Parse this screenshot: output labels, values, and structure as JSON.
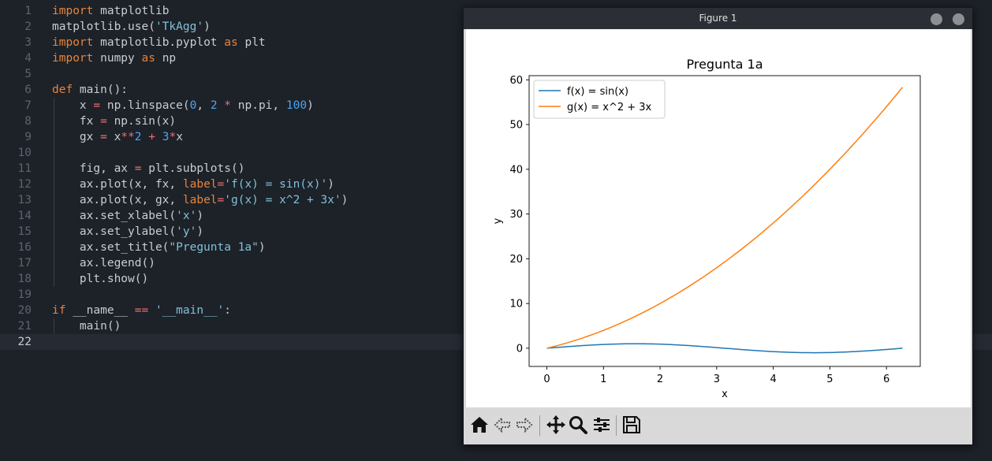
{
  "editor": {
    "lines": [
      [
        [
          "kw",
          "import"
        ],
        [
          "plain",
          " matplotlib"
        ]
      ],
      [
        [
          "plain",
          "matplotlib.use("
        ],
        [
          "str",
          "'TkAgg'"
        ],
        [
          "plain",
          ")"
        ]
      ],
      [
        [
          "kw",
          "import"
        ],
        [
          "plain",
          " matplotlib.pyplot "
        ],
        [
          "kw",
          "as"
        ],
        [
          "plain",
          " plt"
        ]
      ],
      [
        [
          "kw",
          "import"
        ],
        [
          "plain",
          " numpy "
        ],
        [
          "kw",
          "as"
        ],
        [
          "plain",
          " np"
        ]
      ],
      [],
      [
        [
          "kw",
          "def"
        ],
        [
          "plain",
          " main():"
        ]
      ],
      [
        [
          "plain",
          "    x "
        ],
        [
          "op",
          "="
        ],
        [
          "plain",
          " np.linspace("
        ],
        [
          "num",
          "0"
        ],
        [
          "plain",
          ", "
        ],
        [
          "num",
          "2"
        ],
        [
          "plain",
          " "
        ],
        [
          "op",
          "*"
        ],
        [
          "plain",
          " np.pi, "
        ],
        [
          "num",
          "100"
        ],
        [
          "plain",
          ")"
        ]
      ],
      [
        [
          "plain",
          "    fx "
        ],
        [
          "op",
          "="
        ],
        [
          "plain",
          " np.sin(x)"
        ]
      ],
      [
        [
          "plain",
          "    gx "
        ],
        [
          "op",
          "="
        ],
        [
          "plain",
          " x"
        ],
        [
          "op",
          "**"
        ],
        [
          "num",
          "2"
        ],
        [
          "plain",
          " "
        ],
        [
          "op",
          "+"
        ],
        [
          "plain",
          " "
        ],
        [
          "num",
          "3"
        ],
        [
          "op",
          "*"
        ],
        [
          "plain",
          "x"
        ]
      ],
      [],
      [
        [
          "plain",
          "    fig, ax "
        ],
        [
          "op",
          "="
        ],
        [
          "plain",
          " plt.subplots()"
        ]
      ],
      [
        [
          "plain",
          "    ax.plot(x, fx, "
        ],
        [
          "kw",
          "label"
        ],
        [
          "op",
          "="
        ],
        [
          "str",
          "'f(x) = sin(x)'"
        ],
        [
          "plain",
          ")"
        ]
      ],
      [
        [
          "plain",
          "    ax.plot(x, gx, "
        ],
        [
          "kw",
          "label"
        ],
        [
          "op",
          "="
        ],
        [
          "str",
          "'g(x) = x^2 + 3x'"
        ],
        [
          "plain",
          ")"
        ]
      ],
      [
        [
          "plain",
          "    ax.set_xlabel("
        ],
        [
          "str",
          "'x'"
        ],
        [
          "plain",
          ")"
        ]
      ],
      [
        [
          "plain",
          "    ax.set_ylabel("
        ],
        [
          "str",
          "'y'"
        ],
        [
          "plain",
          ")"
        ]
      ],
      [
        [
          "plain",
          "    ax.set_title("
        ],
        [
          "str",
          "\"Pregunta 1a\""
        ],
        [
          "plain",
          ")"
        ]
      ],
      [
        [
          "plain",
          "    ax.legend()"
        ]
      ],
      [
        [
          "plain",
          "    plt.show()"
        ]
      ],
      [],
      [
        [
          "kw",
          "if"
        ],
        [
          "plain",
          " __name__ "
        ],
        [
          "op",
          "=="
        ],
        [
          "plain",
          " "
        ],
        [
          "str",
          "'__main__'"
        ],
        [
          "plain",
          ":"
        ]
      ],
      [
        [
          "plain",
          "    main()"
        ]
      ],
      []
    ],
    "current_line": 22
  },
  "figure_window": {
    "title": "Figure 1",
    "toolbar": [
      "home-icon",
      "back-icon",
      "forward-icon",
      "pan-icon",
      "zoom-icon",
      "configure-subplots-icon",
      "save-icon"
    ]
  },
  "chart_data": {
    "type": "line",
    "title": "Pregunta 1a",
    "xlabel": "x",
    "ylabel": "y",
    "xlim": [
      -0.314,
      6.597
    ],
    "ylim": [
      -4.07,
      60.93
    ],
    "xticks": [
      0,
      1,
      2,
      3,
      4,
      5,
      6
    ],
    "yticks": [
      0,
      10,
      20,
      30,
      40,
      50,
      60
    ],
    "legend_placement": "upper-left",
    "grid": false,
    "series": [
      {
        "name": "f(x) = sin(x)",
        "color": "#1f77b4",
        "function": "sin",
        "x_range": [
          0,
          6.2832
        ],
        "samples": 100
      },
      {
        "name": "g(x) = x^2 + 3x",
        "color": "#ff7f0e",
        "function": "x^2+3x",
        "x_range": [
          0,
          6.2832
        ],
        "samples": 100
      }
    ]
  }
}
